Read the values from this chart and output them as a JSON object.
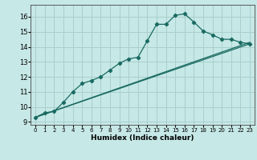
{
  "xlabel": "Humidex (Indice chaleur)",
  "xlim": [
    -0.5,
    23.5
  ],
  "ylim": [
    8.8,
    16.8
  ],
  "yticks": [
    9,
    10,
    11,
    12,
    13,
    14,
    15,
    16
  ],
  "xticks": [
    0,
    1,
    2,
    3,
    4,
    5,
    6,
    7,
    8,
    9,
    10,
    11,
    12,
    13,
    14,
    15,
    16,
    17,
    18,
    19,
    20,
    21,
    22,
    23
  ],
  "bg_color": "#c6e8e6",
  "grid_color": "#aacfcd",
  "line_color": "#1a6b62",
  "series": [
    {
      "x": [
        0,
        1,
        2,
        3,
        4,
        5,
        6,
        7,
        8,
        9,
        10,
        11,
        12,
        13,
        14,
        15,
        16,
        17,
        18,
        19,
        20,
        21,
        22,
        23
      ],
      "y": [
        9.3,
        9.6,
        9.7,
        10.3,
        11.0,
        11.55,
        11.75,
        12.0,
        12.45,
        12.9,
        13.2,
        13.3,
        14.4,
        15.5,
        15.5,
        16.1,
        16.2,
        15.65,
        15.05,
        14.8,
        14.5,
        14.5,
        14.3,
        14.2
      ],
      "marker": true
    },
    {
      "x": [
        0,
        23
      ],
      "y": [
        9.3,
        14.3
      ],
      "marker": false
    },
    {
      "x": [
        0,
        23
      ],
      "y": [
        9.3,
        14.2
      ],
      "marker": false
    }
  ]
}
